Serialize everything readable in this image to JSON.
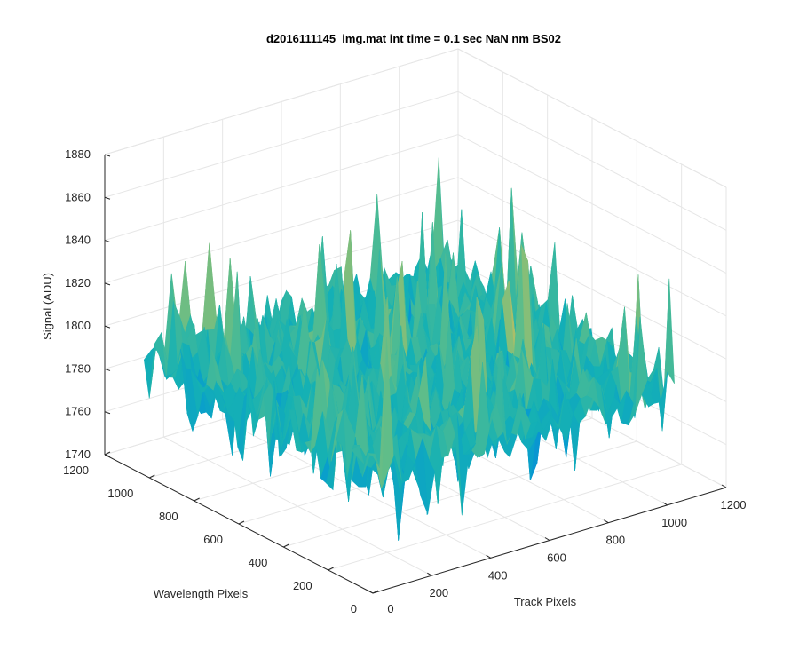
{
  "chart_data": {
    "type": "surface",
    "title": "d2016111145_img.mat int time = 0.1 sec  NaN nm BS02",
    "xlabel": "Track Pixels",
    "ylabel": "Wavelength Pixels",
    "zlabel": "Signal (ADU)",
    "xlim": [
      0,
      1200
    ],
    "ylim": [
      0,
      1200
    ],
    "zlim": [
      1740,
      1880
    ],
    "x_ticks": [
      "0",
      "200",
      "400",
      "600",
      "800",
      "1000",
      "1200"
    ],
    "y_ticks": [
      "0",
      "200",
      "400",
      "600",
      "800",
      "1000",
      "1200"
    ],
    "z_ticks": [
      "1740",
      "1760",
      "1780",
      "1800",
      "1820",
      "1840",
      "1860",
      "1880"
    ],
    "surface_extent": {
      "x": [
        0,
        1024
      ],
      "y": [
        0,
        1024
      ]
    },
    "surface_stats": {
      "mean": 1795,
      "min": 1748,
      "max": 1872
    },
    "colormap": "parula",
    "grid": true
  }
}
